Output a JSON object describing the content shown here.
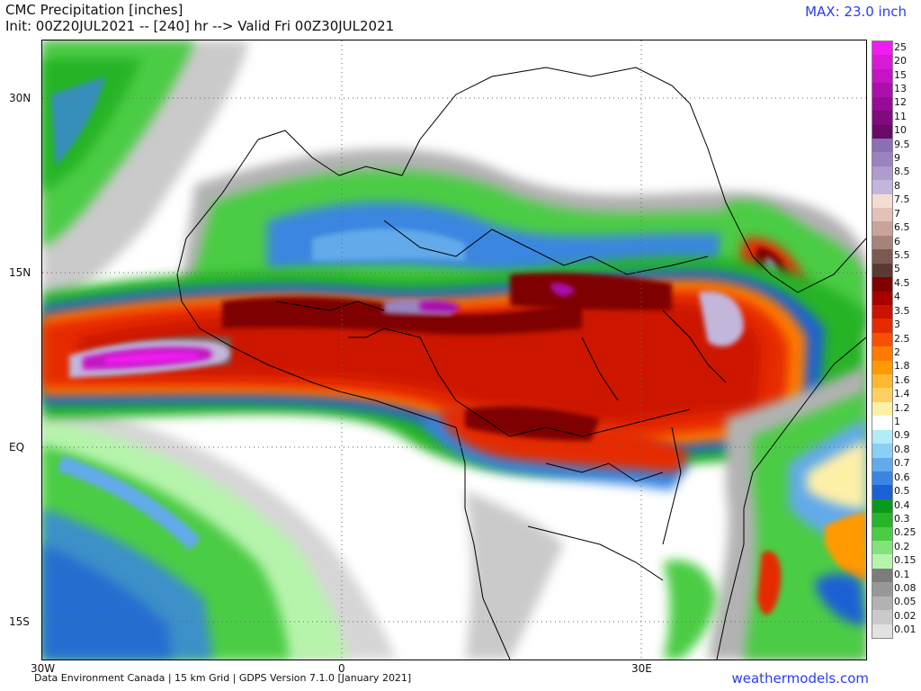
{
  "header": {
    "title_line1": "CMC Precipitation [inches]",
    "title_line2": "Init: 00Z20JUL2021 -- [240] hr --> Valid Fri 00Z30JUL2021",
    "max_label": "MAX: 23.0 inch"
  },
  "axes": {
    "lat_labels": [
      "30N",
      "15N",
      "EQ",
      "15S"
    ],
    "lon_labels": [
      "30W",
      "0",
      "30E"
    ]
  },
  "footer": {
    "source": "Data Environment Canada | 15 km Grid | GDPS Version 7.1.0 [January 2021]",
    "website": "weathermodels.com"
  },
  "colors": {
    "accent": "#2a3cf0"
  },
  "colorbar": {
    "levels": [
      {
        "label": "25",
        "color": "#f01cf0"
      },
      {
        "label": "20",
        "color": "#d81ad8"
      },
      {
        "label": "15",
        "color": "#c414c4"
      },
      {
        "label": "13",
        "color": "#ac10ac"
      },
      {
        "label": "12",
        "color": "#960c96"
      },
      {
        "label": "11",
        "color": "#800a80"
      },
      {
        "label": "10",
        "color": "#680a68"
      },
      {
        "label": "9.5",
        "color": "#8a6fb4"
      },
      {
        "label": "9",
        "color": "#9a84c0"
      },
      {
        "label": "8.5",
        "color": "#ad9ccc"
      },
      {
        "label": "8",
        "color": "#c2b6da"
      },
      {
        "label": "7.5",
        "color": "#f4dcd2"
      },
      {
        "label": "7",
        "color": "#e2c2b8"
      },
      {
        "label": "6.5",
        "color": "#c8a49a"
      },
      {
        "label": "6",
        "color": "#a6847a"
      },
      {
        "label": "5.5",
        "color": "#7a5a52"
      },
      {
        "label": "5",
        "color": "#5a3a32"
      },
      {
        "label": "4.5",
        "color": "#7e0000"
      },
      {
        "label": "4",
        "color": "#a80000"
      },
      {
        "label": "3.5",
        "color": "#cc1200"
      },
      {
        "label": "3",
        "color": "#e62a00"
      },
      {
        "label": "2.5",
        "color": "#f65000"
      },
      {
        "label": "2",
        "color": "#ff7a00"
      },
      {
        "label": "1.8",
        "color": "#ff9a00"
      },
      {
        "label": "1.6",
        "color": "#ffb830"
      },
      {
        "label": "1.4",
        "color": "#ffd060"
      },
      {
        "label": "1.2",
        "color": "#fff0a8"
      },
      {
        "label": "1",
        "color": "#ffffff"
      },
      {
        "label": "0.9",
        "color": "#b2ecfa"
      },
      {
        "label": "0.8",
        "color": "#8ad0f4"
      },
      {
        "label": "0.7",
        "color": "#62aaea"
      },
      {
        "label": "0.6",
        "color": "#3a86e0"
      },
      {
        "label": "0.5",
        "color": "#1c60d4"
      },
      {
        "label": "0.4",
        "color": "#0a9a1a"
      },
      {
        "label": "0.3",
        "color": "#28b428"
      },
      {
        "label": "0.25",
        "color": "#4ccc44"
      },
      {
        "label": "0.2",
        "color": "#84e27a"
      },
      {
        "label": "0.15",
        "color": "#b6f4ac"
      },
      {
        "label": "0.1",
        "color": "#7c7c7c"
      },
      {
        "label": "0.08",
        "color": "#989898"
      },
      {
        "label": "0.05",
        "color": "#b2b2b2"
      },
      {
        "label": "0.02",
        "color": "#cacaca"
      },
      {
        "label": "0.01",
        "color": "#e2e2e2"
      }
    ]
  }
}
